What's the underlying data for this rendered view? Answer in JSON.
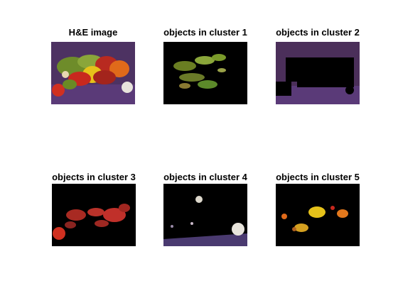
{
  "figure": {
    "panels": [
      {
        "id": "he",
        "title": "H&E image"
      },
      {
        "id": "c1",
        "title": "objects in cluster 1"
      },
      {
        "id": "c2",
        "title": "objects in cluster 2"
      },
      {
        "id": "c3",
        "title": "objects in cluster 3"
      },
      {
        "id": "c4",
        "title": "objects in cluster 4"
      },
      {
        "id": "c5",
        "title": "objects in cluster 5"
      }
    ],
    "colors": {
      "background": "#ffffff",
      "masked": "#000000",
      "purple_bg": "#4b2f5a",
      "green": "#7a9a2a",
      "yellow": "#e6c21a",
      "red": "#c8281e",
      "orange": "#e3781c",
      "white_garlic": "#e8e4dc"
    }
  }
}
